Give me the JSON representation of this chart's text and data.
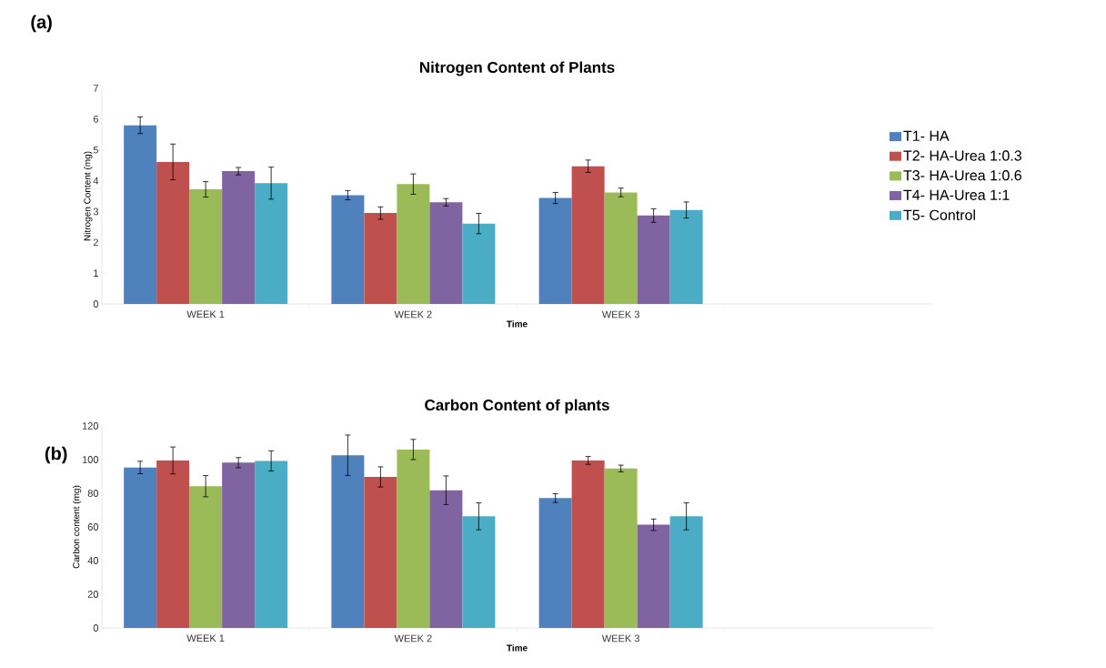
{
  "chart_data": [
    {
      "type": "bar",
      "title": "Nitrogen Content of Plants",
      "xlabel": "Time",
      "ylabel": "Nitrogen Content (mg)",
      "annotations": [
        "(a)"
      ],
      "categories": [
        "WEEK 1",
        "WEEK 2",
        "WEEK 3",
        null
      ],
      "ylim": [
        0,
        7
      ],
      "yticks": [
        0,
        1,
        2,
        3,
        4,
        5,
        6,
        7
      ],
      "legend": "right",
      "series": [
        {
          "name": "T1- HA",
          "color": "#4f81bd",
          "values": [
            5.8,
            3.53,
            3.44,
            null
          ],
          "errors": [
            0.27,
            0.15,
            0.18,
            null
          ]
        },
        {
          "name": "T2- HA-Urea 1:0.3",
          "color": "#c0504d",
          "values": [
            4.61,
            2.95,
            4.47,
            null
          ],
          "errors": [
            0.58,
            0.2,
            0.2,
            null
          ]
        },
        {
          "name": "T3- HA-Urea 1:0.6",
          "color": "#9bbb59",
          "values": [
            3.72,
            3.89,
            3.62,
            null
          ],
          "errors": [
            0.25,
            0.33,
            0.14,
            null
          ]
        },
        {
          "name": "T4- HA-Urea 1:1",
          "color": "#8064a2",
          "values": [
            4.31,
            3.3,
            2.87,
            null
          ],
          "errors": [
            0.12,
            0.12,
            0.22,
            null
          ]
        },
        {
          "name": "T5- Control",
          "color": "#4bacc6",
          "values": [
            3.92,
            2.61,
            3.05,
            null
          ],
          "errors": [
            0.52,
            0.33,
            0.26,
            null
          ]
        }
      ]
    },
    {
      "type": "bar",
      "title": "Carbon Content of plants",
      "xlabel": "Time",
      "ylabel": "Carbon content (mg)",
      "annotations": [
        "(b)"
      ],
      "categories": [
        "WEEK 1",
        "WEEK 2",
        "WEEK 3",
        null
      ],
      "ylim": [
        0,
        120
      ],
      "yticks": [
        0,
        20,
        40,
        60,
        80,
        100,
        120
      ],
      "series": [
        {
          "color": "#4f81bd",
          "values": [
            95.3,
            102.6,
            77.1,
            null
          ],
          "errors": [
            3.7,
            12,
            2.6,
            null
          ]
        },
        {
          "color": "#c0504d",
          "values": [
            99.5,
            89.7,
            99.5,
            null
          ],
          "errors": [
            8,
            6,
            2.3,
            null
          ]
        },
        {
          "color": "#9bbb59",
          "values": [
            84.2,
            106,
            94.7,
            null
          ],
          "errors": [
            6.3,
            6,
            2,
            null
          ]
        },
        {
          "color": "#8064a2",
          "values": [
            98.2,
            81.8,
            61.3,
            null
          ],
          "errors": [
            3,
            8.5,
            3.4,
            null
          ]
        },
        {
          "color": "#4bacc6",
          "values": [
            99.2,
            66.3,
            66.3,
            null
          ],
          "errors": [
            6,
            8,
            8,
            null
          ]
        }
      ]
    }
  ]
}
